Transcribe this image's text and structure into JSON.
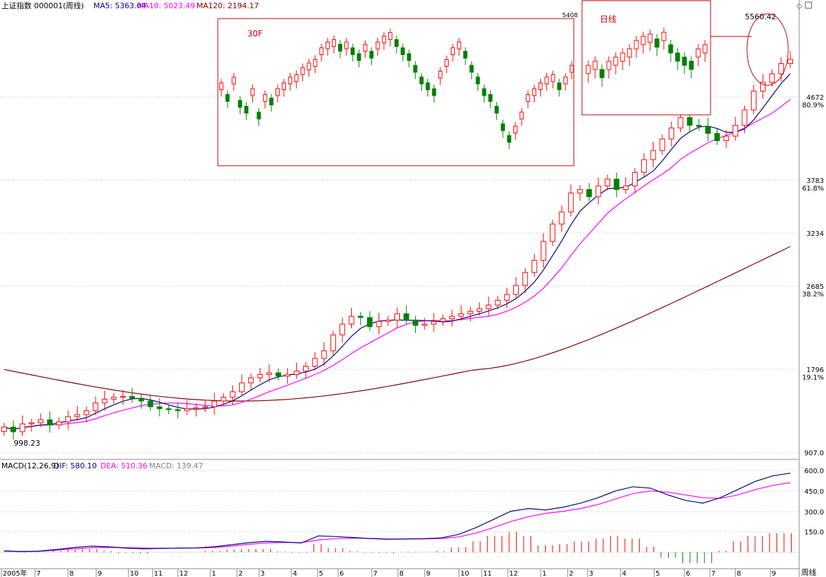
{
  "header": {
    "title": "上证指数 000001(周线)",
    "ma5": "MA5: 5363.04",
    "ma10": "MA10: 5023.49",
    "ma120": "MA120: 2194.17"
  },
  "macd_header": {
    "title": "MACD(12,26,9)",
    "dif": "DIF: 580.10",
    "dea": "DEA: 510.36",
    "macd": "MACD: 139.47"
  },
  "annotations": {
    "inset_30f": "30F",
    "inset_daily": "日线",
    "peak_label": "5560.42",
    "low_label": "998.23",
    "inset_top_number": "5408"
  },
  "price_axis": {
    "labels": [
      {
        "value": "4672",
        "pct": "80.9%"
      },
      {
        "value": "3783",
        "pct": "61.8%"
      },
      {
        "value": "3234",
        "pct": ""
      },
      {
        "value": "2685",
        "pct": "38.2%"
      },
      {
        "value": "1796",
        "pct": "19.1%"
      },
      {
        "value": "907.0",
        "pct": ""
      }
    ]
  },
  "macd_axis": {
    "labels": [
      "600.0",
      "450.0",
      "300.0",
      "150.0"
    ]
  },
  "time_axis": {
    "labels": [
      "2005年",
      "7",
      "8",
      "9",
      "10",
      "11",
      "12",
      "1",
      "2",
      "3",
      "4",
      "5",
      "6",
      "7",
      "8",
      "9",
      "10",
      "11",
      "12",
      "1",
      "2",
      "3",
      "4",
      "5",
      "6",
      "7",
      "8",
      "9"
    ],
    "period_label": "周线"
  },
  "colors": {
    "up": "#ff0000",
    "down": "#008000",
    "ma5": "#000080",
    "ma10": "#ff00ff",
    "ma120": "#800000",
    "grid": "#b0b0b0",
    "inset_border": "#c00000"
  },
  "chart_data": [
    {
      "type": "candlestick",
      "title": "上证指数 000001(周线)",
      "x_range": [
        "2005-06",
        "2007-10"
      ],
      "ylim": [
        907,
        5560
      ],
      "y_scale": "log",
      "legend": [
        "MA5: 5363.04",
        "MA10: 5023.49",
        "MA120: 2194.17"
      ],
      "notable_points": {
        "low": 998.23,
        "high": 5560.42
      },
      "close_series_approx": [
        1020,
        998,
        1035,
        1040,
        1055,
        1030,
        1045,
        1070,
        1080,
        1100,
        1140,
        1160,
        1170,
        1175,
        1165,
        1150,
        1120,
        1110,
        1105,
        1100,
        1110,
        1115,
        1120,
        1150,
        1170,
        1200,
        1250,
        1280,
        1300,
        1310,
        1290,
        1300,
        1320,
        1350,
        1400,
        1450,
        1560,
        1640,
        1700,
        1690,
        1620,
        1660,
        1670,
        1720,
        1670,
        1630,
        1640,
        1660,
        1680,
        1700,
        1720,
        1740,
        1760,
        1790,
        1830,
        1880,
        1960,
        2080,
        2200,
        2400,
        2600,
        2750,
        3000,
        3050,
        2950,
        3100,
        3200,
        3050,
        3100,
        3300,
        3500,
        3650,
        3850,
        4050,
        4250,
        4100,
        4080,
        3950,
        3820,
        3900,
        4100,
        4400,
        4800,
        5000,
        5200,
        5450,
        5560
      ],
      "series_lines": [
        {
          "name": "MA5",
          "value_last": 5363.04
        },
        {
          "name": "MA10",
          "value_last": 5023.49
        },
        {
          "name": "MA120",
          "value_last": 2194.17
        }
      ]
    },
    {
      "type": "line",
      "title": "MACD(12,26,9)",
      "ylim": [
        0,
        650
      ],
      "series": [
        {
          "name": "DIF",
          "last": 580.1,
          "values": [
            10,
            5,
            8,
            20,
            35,
            45,
            40,
            30,
            25,
            28,
            30,
            32,
            40,
            55,
            70,
            80,
            75,
            68,
            120,
            115,
            108,
            100,
            95,
            98,
            100,
            105,
            130,
            180,
            240,
            300,
            320,
            310,
            330,
            360,
            400,
            450,
            480,
            470,
            420,
            380,
            360,
            400,
            460,
            520,
            560,
            580
          ]
        },
        {
          "name": "DEA",
          "last": 510.36,
          "values": [
            8,
            6,
            7,
            15,
            25,
            33,
            36,
            33,
            30,
            29,
            30,
            31,
            35,
            45,
            58,
            68,
            72,
            70,
            90,
            100,
            104,
            102,
            98,
            97,
            98,
            101,
            112,
            140,
            180,
            225,
            260,
            285,
            300,
            320,
            350,
            390,
            430,
            450,
            440,
            420,
            400,
            395,
            420,
            460,
            490,
            510
          ]
        },
        {
          "name": "MACD",
          "last": 139.47
        }
      ]
    }
  ]
}
